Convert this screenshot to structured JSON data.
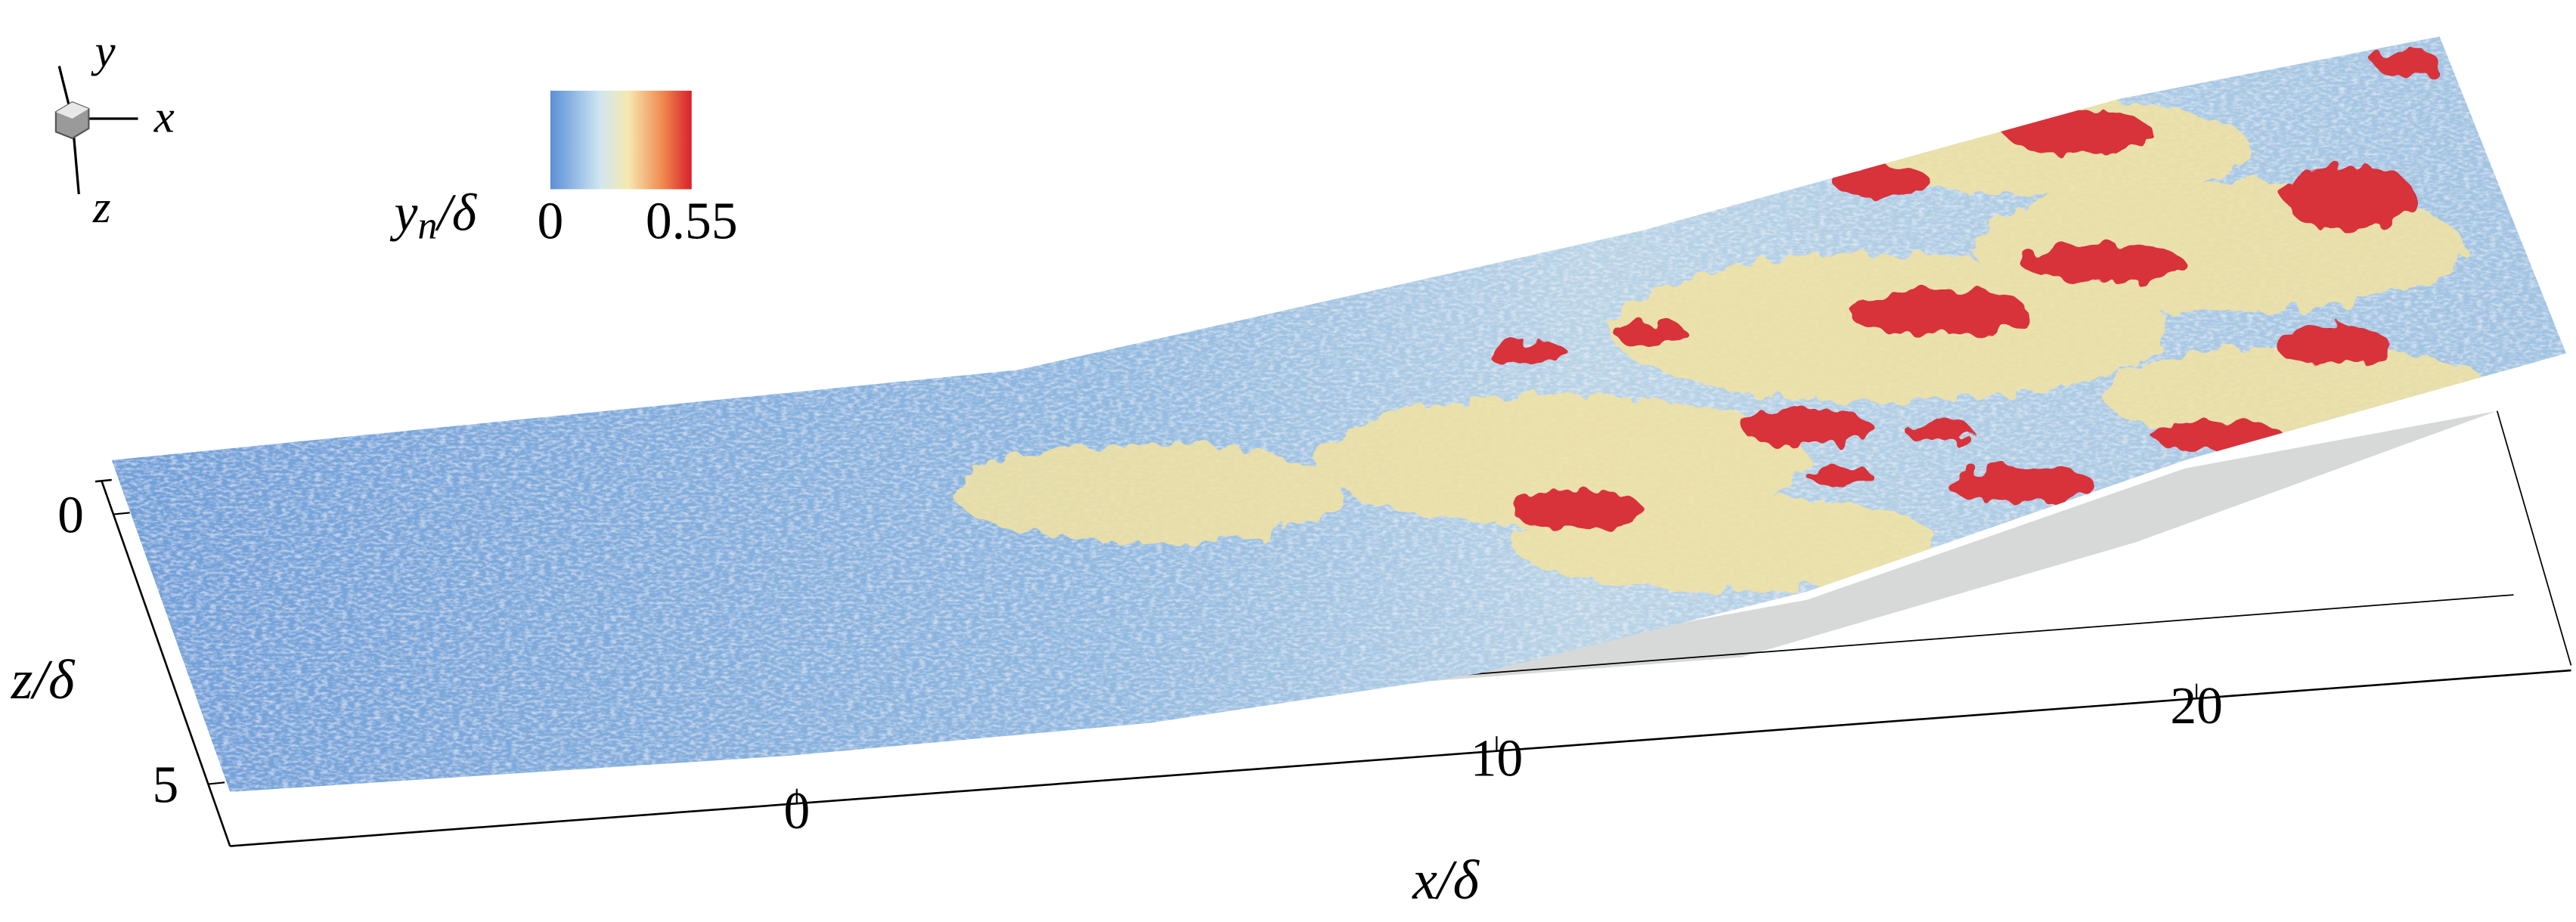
{
  "orientation_axes": {
    "x": "x",
    "y": "y",
    "z": "z"
  },
  "colorbar": {
    "symbol": "y",
    "subscript": "n",
    "rest": "/δ",
    "min": 0,
    "max": 0.55
  },
  "x_axis": {
    "label": "x/δ",
    "ticks": [
      0,
      10,
      20
    ]
  },
  "z_axis": {
    "label": "z/δ",
    "ticks": [
      0,
      5
    ]
  }
}
